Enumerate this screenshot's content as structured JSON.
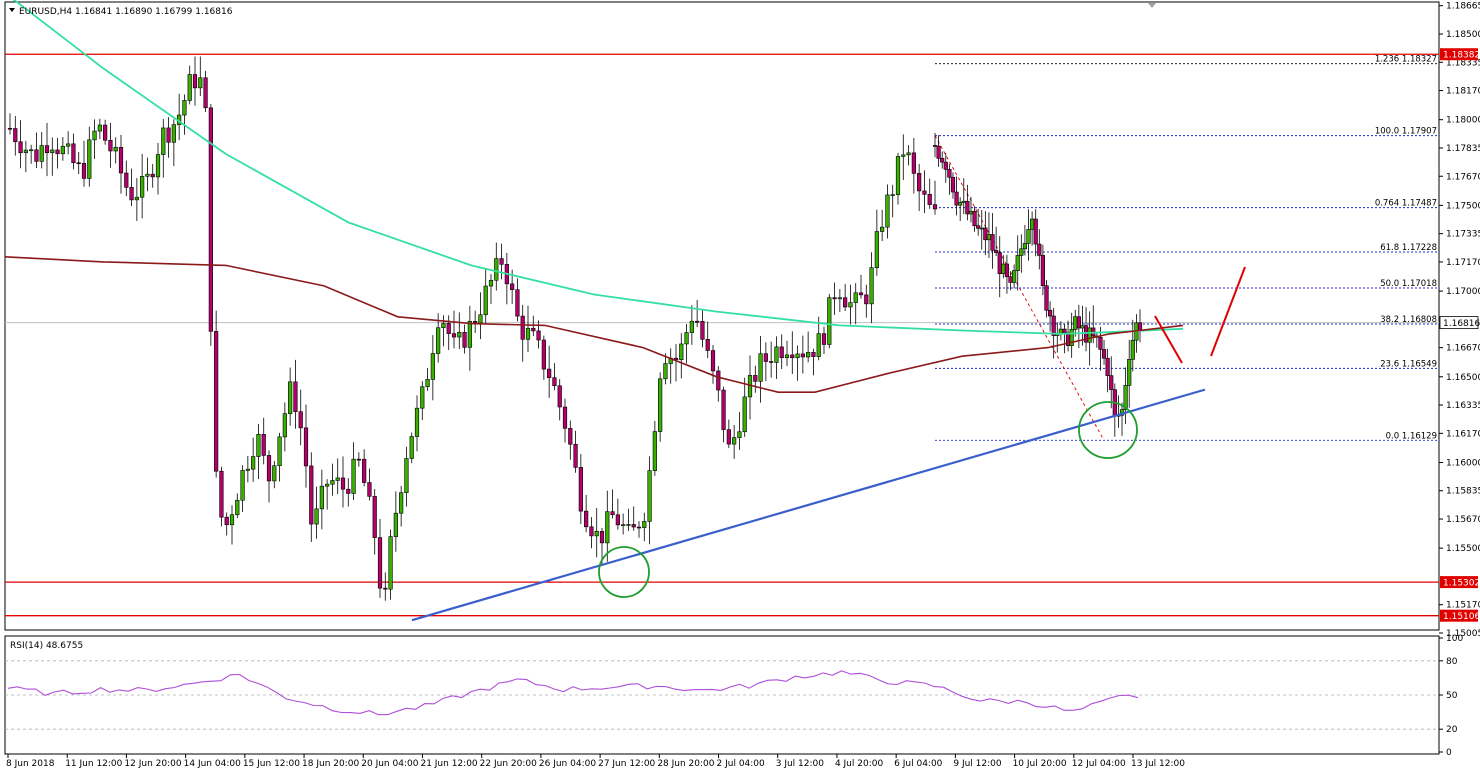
{
  "header": {
    "symbol": "EURUSD,H4",
    "ohlc": "1.16841 1.16890 1.16799 1.16816",
    "menu_icon": "triangle-down-icon"
  },
  "indicator": {
    "label": "RSI(14) 48.6755",
    "levels": [
      80,
      50,
      20
    ],
    "axis_labels": [
      "100",
      "80",
      "50",
      "20",
      "0"
    ]
  },
  "colors": {
    "bull": "#38b000",
    "bear": "#b3006b",
    "ma_fast": "#33e0a0",
    "ma_slow": "#8b1a1a",
    "trendline": "#3a5fcd",
    "resistance": "#e00000",
    "fib": "#1f2bd1",
    "rsi": "#b04fd8",
    "circle": "#1f9e2f",
    "price_tag_bg": "#e00000"
  },
  "price_axis": {
    "labels": [
      "1.18665",
      "1.18500",
      "1.18335",
      "1.18170",
      "1.18000",
      "1.17835",
      "1.17670",
      "1.17500",
      "1.17335",
      "1.17170",
      "1.17000",
      "1.16670",
      "1.16500",
      "1.16335",
      "1.16170",
      "1.16000",
      "1.15835",
      "1.15670",
      "1.15500",
      "1.15170",
      "1.15005"
    ],
    "current_price": "1.16816",
    "tags": [
      "1.18382",
      "1.15302",
      "1.15106"
    ]
  },
  "time_axis": {
    "labels": [
      "8 Jun 2018",
      "11 Jun 12:00",
      "12 Jun 20:00",
      "14 Jun 04:00",
      "15 Jun 12:00",
      "18 Jun 20:00",
      "20 Jun 04:00",
      "21 Jun 12:00",
      "22 Jun 20:00",
      "26 Jun 04:00",
      "27 Jun 12:00",
      "28 Jun 20:00",
      "2 Jul 04:00",
      "3 Jul 12:00",
      "4 Jul 20:00",
      "6 Jul 04:00",
      "9 Jul 12:00",
      "10 Jul 20:00",
      "12 Jul 04:00",
      "13 Jul 12:00"
    ]
  },
  "fib_labels": [
    {
      "level": "1.236",
      "price": "1.18327"
    },
    {
      "level": "100.0",
      "price": "1.17907"
    },
    {
      "level": "0.764",
      "price": "1.17487"
    },
    {
      "level": "61.8",
      "price": "1.17228"
    },
    {
      "level": "50.0",
      "price": "1.17018"
    },
    {
      "level": "38.2",
      "price": "1.16808"
    },
    {
      "level": "23.6",
      "price": "1.16549"
    },
    {
      "level": "0.0",
      "price": "1.16129"
    }
  ],
  "chart_data": {
    "type": "candlestick",
    "title": "",
    "ylim": [
      1.1498,
      1.1874
    ],
    "horizontal_levels": [
      1.18382,
      1.15302,
      1.15106
    ],
    "current_price": 1.16816,
    "fib_levels": [
      1.18327,
      1.17907,
      1.17487,
      1.17228,
      1.17018,
      1.16808,
      1.16549,
      1.16129
    ],
    "trendline_anchor_points": [
      [
        1,
        1.151
      ],
      [
        30,
        1.1625
      ],
      [
        44,
        1.1648
      ]
    ],
    "ma_fast_anchor_points": [
      [
        -58,
        1.1874
      ],
      [
        -50,
        1.183
      ],
      [
        -40,
        1.178
      ],
      [
        -30,
        1.174
      ],
      [
        -20,
        1.1715
      ],
      [
        -10,
        1.1698
      ],
      [
        0,
        1.1688
      ],
      [
        10,
        1.168
      ],
      [
        20,
        1.1677
      ],
      [
        28,
        1.1675
      ],
      [
        32,
        1.1676
      ],
      [
        38,
        1.1678
      ]
    ],
    "ma_slow_anchor_points": [
      [
        -58,
        1.172
      ],
      [
        -50,
        1.1717
      ],
      [
        -40,
        1.1715
      ],
      [
        -32,
        1.1703
      ],
      [
        -26,
        1.1685
      ],
      [
        -20,
        1.1681
      ],
      [
        -14,
        1.168
      ],
      [
        -6,
        1.1667
      ],
      [
        0,
        1.165
      ],
      [
        5,
        1.1641
      ],
      [
        8,
        1.1641
      ],
      [
        14,
        1.1652
      ],
      [
        20,
        1.1662
      ],
      [
        27,
        1.1667
      ],
      [
        32,
        1.1675
      ],
      [
        38,
        1.168
      ]
    ],
    "rsi_anchor_points": [
      [
        0,
        56
      ],
      [
        5,
        51
      ],
      [
        10,
        55
      ],
      [
        15,
        54
      ],
      [
        20,
        60
      ],
      [
        25,
        68
      ],
      [
        30,
        48
      ],
      [
        35,
        38
      ],
      [
        40,
        33
      ],
      [
        45,
        40
      ],
      [
        50,
        52
      ],
      [
        55,
        63
      ],
      [
        60,
        55
      ],
      [
        65,
        57
      ],
      [
        70,
        58
      ],
      [
        75,
        54
      ],
      [
        80,
        58
      ],
      [
        85,
        66
      ],
      [
        90,
        70
      ],
      [
        95,
        62
      ],
      [
        100,
        58
      ],
      [
        105,
        45
      ],
      [
        110,
        44
      ],
      [
        115,
        35
      ],
      [
        120,
        48
      ],
      [
        122,
        49
      ]
    ],
    "candle_count": 234
  }
}
